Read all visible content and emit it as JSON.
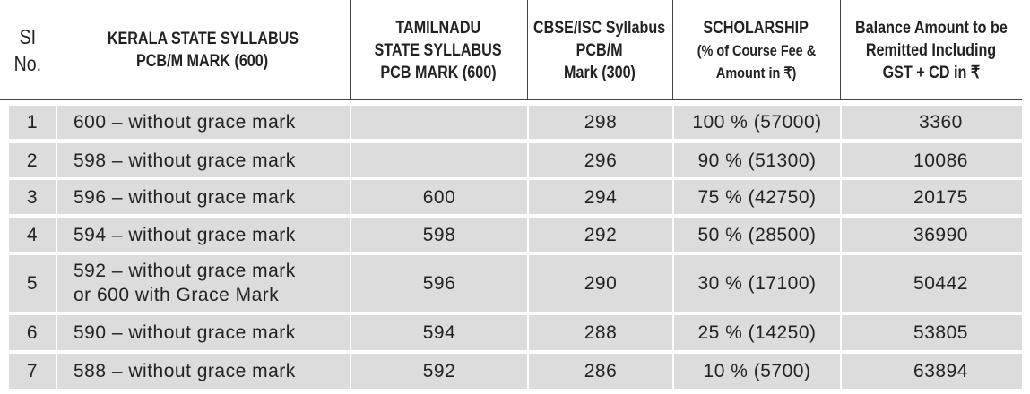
{
  "table": {
    "header": [
      [
        "SI",
        "No."
      ],
      [
        "KERALA STATE SYLLABUS",
        "PCB/M MARK (600)"
      ],
      [
        "TAMILNADU",
        "STATE SYLLABUS",
        "PCB MARK (600)"
      ],
      [
        "CBSE/ISC Syllabus",
        "PCB/M",
        "Mark (300)"
      ],
      [
        "SCHOLARSHIP",
        "(% of Course Fee &",
        "Amount in ₹)"
      ],
      [
        "Balance Amount to be",
        "Remitted Including",
        "GST + CD in ₹"
      ]
    ],
    "rows": [
      [
        "1",
        "600 – without grace mark",
        null,
        "298",
        "100 % (57000)",
        "3360"
      ],
      [
        "2",
        "598 – without grace mark",
        null,
        "296",
        "90 % (51300)",
        "10086"
      ],
      [
        "3",
        "596 – without grace mark",
        "600",
        "294",
        "75 % (42750)",
        "20175"
      ],
      [
        "4",
        "594 – without grace mark",
        "598",
        "292",
        "50 % (28500)",
        "36990"
      ],
      [
        "5",
        [
          "592 – without grace mark",
          "or 600 with Grace Mark"
        ],
        "596",
        "290",
        "30 % (17100)",
        "50442"
      ],
      [
        "6",
        "590 – without grace mark",
        "594",
        "288",
        "25 % (14250)",
        "53805"
      ],
      [
        "7",
        "588 – without grace mark",
        "592",
        "286",
        "10 % (5700)",
        "63894"
      ]
    ]
  }
}
